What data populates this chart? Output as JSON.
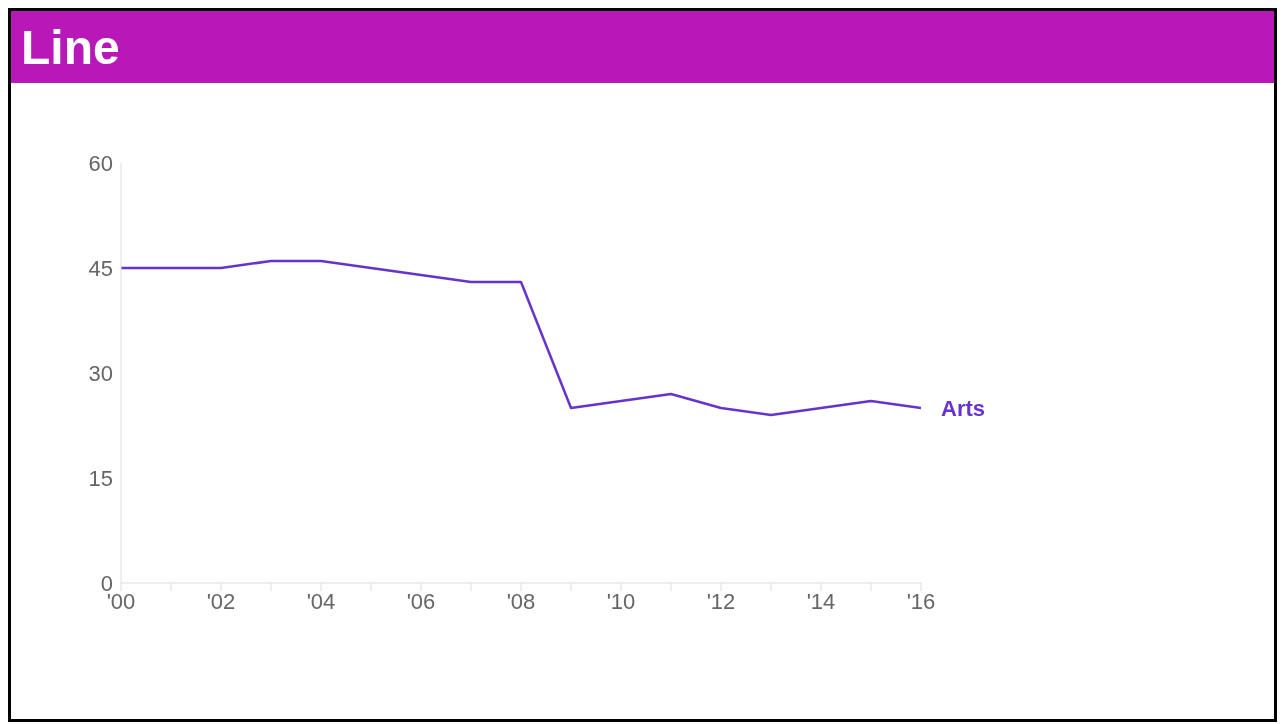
{
  "chart_data": {
    "type": "line",
    "title": "Line",
    "x": [
      2000,
      2001,
      2002,
      2003,
      2004,
      2005,
      2006,
      2007,
      2008,
      2009,
      2010,
      2011,
      2012,
      2013,
      2014,
      2015,
      2016
    ],
    "series": [
      {
        "name": "Arts",
        "color": "#6633cc",
        "values": [
          45,
          45,
          45,
          46,
          46,
          45,
          44,
          43,
          43,
          25,
          26,
          27,
          25,
          24,
          25,
          26,
          25
        ]
      }
    ],
    "xlim": [
      2000,
      2016
    ],
    "xticks": [
      {
        "value": 2000,
        "label": "'00"
      },
      {
        "value": 2001,
        "label": null
      },
      {
        "value": 2002,
        "label": "'02"
      },
      {
        "value": 2003,
        "label": null
      },
      {
        "value": 2004,
        "label": "'04"
      },
      {
        "value": 2005,
        "label": null
      },
      {
        "value": 2006,
        "label": "'06"
      },
      {
        "value": 2007,
        "label": null
      },
      {
        "value": 2008,
        "label": "'08"
      },
      {
        "value": 2009,
        "label": null
      },
      {
        "value": 2010,
        "label": "'10"
      },
      {
        "value": 2011,
        "label": null
      },
      {
        "value": 2012,
        "label": "'12"
      },
      {
        "value": 2013,
        "label": null
      },
      {
        "value": 2014,
        "label": "'14"
      },
      {
        "value": 2015,
        "label": null
      },
      {
        "value": 2016,
        "label": "'16"
      }
    ],
    "ylim": [
      0,
      60
    ],
    "yticks": [
      0,
      15,
      30,
      45,
      60
    ],
    "grid": false,
    "marker": "none",
    "line_style": "solid"
  }
}
